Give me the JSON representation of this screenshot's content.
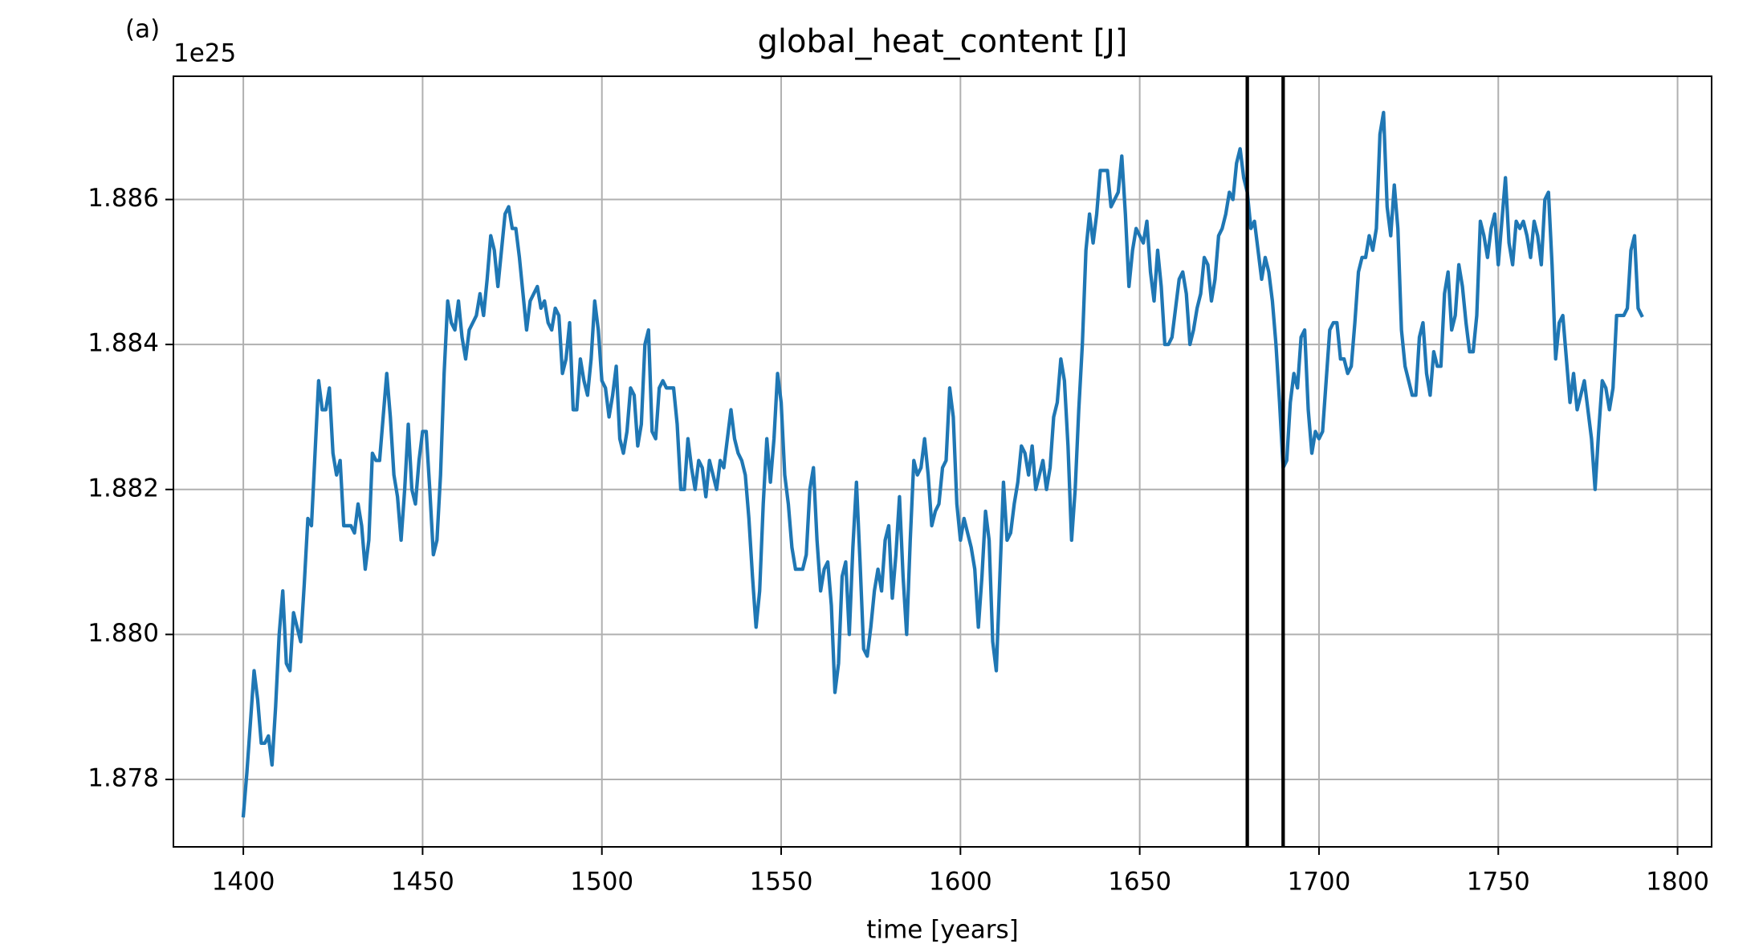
{
  "chart_data": {
    "type": "line",
    "panel_label": "(a)",
    "title": "global_heat_content [J]",
    "offset_label": "1e25",
    "xlabel": "time [years]",
    "color": "#1f77b4",
    "vlines": [
      1680,
      1690
    ],
    "vline_color": "#000000",
    "grid": true,
    "xlim": [
      1380.5,
      1809.5
    ],
    "xticks": [
      1400,
      1450,
      1500,
      1550,
      1600,
      1650,
      1700,
      1750,
      1800
    ],
    "ylim": [
      1.87707,
      1.8877
    ],
    "yticks": [
      1.878,
      {
        "value": 1.88,
        "label": "1.880"
      },
      1.882,
      1.884,
      1.886
    ],
    "x": [
      1400,
      1401,
      1402,
      1403,
      1404,
      1405,
      1406,
      1407,
      1408,
      1409,
      1410,
      1411,
      1412,
      1413,
      1414,
      1415,
      1416,
      1417,
      1418,
      1419,
      1420,
      1421,
      1422,
      1423,
      1424,
      1425,
      1426,
      1427,
      1428,
      1429,
      1430,
      1431,
      1432,
      1433,
      1434,
      1435,
      1436,
      1437,
      1438,
      1439,
      1440,
      1441,
      1442,
      1443,
      1444,
      1445,
      1446,
      1447,
      1448,
      1449,
      1450,
      1451,
      1452,
      1453,
      1454,
      1455,
      1456,
      1457,
      1458,
      1459,
      1460,
      1461,
      1462,
      1463,
      1464,
      1465,
      1466,
      1467,
      1468,
      1469,
      1470,
      1471,
      1472,
      1473,
      1474,
      1475,
      1476,
      1477,
      1478,
      1479,
      1480,
      1481,
      1482,
      1483,
      1484,
      1485,
      1486,
      1487,
      1488,
      1489,
      1490,
      1491,
      1492,
      1493,
      1494,
      1495,
      1496,
      1497,
      1498,
      1499,
      1500,
      1501,
      1502,
      1503,
      1504,
      1505,
      1506,
      1507,
      1508,
      1509,
      1510,
      1511,
      1512,
      1513,
      1514,
      1515,
      1516,
      1517,
      1518,
      1519,
      1520,
      1521,
      1522,
      1523,
      1524,
      1525,
      1526,
      1527,
      1528,
      1529,
      1530,
      1531,
      1532,
      1533,
      1534,
      1535,
      1536,
      1537,
      1538,
      1539,
      1540,
      1541,
      1542,
      1543,
      1544,
      1545,
      1546,
      1547,
      1548,
      1549,
      1550,
      1551,
      1552,
      1553,
      1554,
      1555,
      1556,
      1557,
      1558,
      1559,
      1560,
      1561,
      1562,
      1563,
      1564,
      1565,
      1566,
      1567,
      1568,
      1569,
      1570,
      1571,
      1572,
      1573,
      1574,
      1575,
      1576,
      1577,
      1578,
      1579,
      1580,
      1581,
      1582,
      1583,
      1584,
      1585,
      1586,
      1587,
      1588,
      1589,
      1590,
      1591,
      1592,
      1593,
      1594,
      1595,
      1596,
      1597,
      1598,
      1599,
      1600,
      1601,
      1602,
      1603,
      1604,
      1605,
      1606,
      1607,
      1608,
      1609,
      1610,
      1611,
      1612,
      1613,
      1614,
      1615,
      1616,
      1617,
      1618,
      1619,
      1620,
      1621,
      1622,
      1623,
      1624,
      1625,
      1626,
      1627,
      1628,
      1629,
      1630,
      1631,
      1632,
      1633,
      1634,
      1635,
      1636,
      1637,
      1638,
      1639,
      1640,
      1641,
      1642,
      1643,
      1644,
      1645,
      1646,
      1647,
      1648,
      1649,
      1650,
      1651,
      1652,
      1653,
      1654,
      1655,
      1656,
      1657,
      1658,
      1659,
      1660,
      1661,
      1662,
      1663,
      1664,
      1665,
      1666,
      1667,
      1668,
      1669,
      1670,
      1671,
      1672,
      1673,
      1674,
      1675,
      1676,
      1677,
      1678,
      1679,
      1680,
      1681,
      1682,
      1683,
      1684,
      1685,
      1686,
      1687,
      1688,
      1689,
      1690,
      1691,
      1692,
      1693,
      1694,
      1695,
      1696,
      1697,
      1698,
      1699,
      1700,
      1701,
      1702,
      1703,
      1704,
      1705,
      1706,
      1707,
      1708,
      1709,
      1710,
      1711,
      1712,
      1713,
      1714,
      1715,
      1716,
      1717,
      1718,
      1719,
      1720,
      1721,
      1722,
      1723,
      1724,
      1725,
      1726,
      1727,
      1728,
      1729,
      1730,
      1731,
      1732,
      1733,
      1734,
      1735,
      1736,
      1737,
      1738,
      1739,
      1740,
      1741,
      1742,
      1743,
      1744,
      1745,
      1746,
      1747,
      1748,
      1749,
      1750,
      1751,
      1752,
      1753,
      1754,
      1755,
      1756,
      1757,
      1758,
      1759,
      1760,
      1761,
      1762,
      1763,
      1764,
      1765,
      1766,
      1767,
      1768,
      1769,
      1770,
      1771,
      1772,
      1773,
      1774,
      1775,
      1776,
      1777,
      1778,
      1779,
      1780,
      1781,
      1782,
      1783,
      1784,
      1785,
      1786,
      1787,
      1788,
      1789,
      1790
    ],
    "values": [
      1.8775,
      1.8781,
      1.8788,
      1.8795,
      1.8791,
      1.8785,
      1.8785,
      1.8786,
      1.8782,
      1.879,
      1.88,
      1.8806,
      1.8796,
      1.8795,
      1.8803,
      1.8801,
      1.8799,
      1.8807,
      1.8816,
      1.8815,
      1.8825,
      1.8835,
      1.8831,
      1.8831,
      1.8834,
      1.8825,
      1.8822,
      1.8824,
      1.8815,
      1.8815,
      1.8815,
      1.8814,
      1.8818,
      1.8815,
      1.8809,
      1.8813,
      1.8825,
      1.8824,
      1.8824,
      1.883,
      1.8836,
      1.883,
      1.8822,
      1.8819,
      1.8813,
      1.882,
      1.8829,
      1.882,
      1.8818,
      1.8824,
      1.8828,
      1.8828,
      1.882,
      1.8811,
      1.8813,
      1.8822,
      1.8836,
      1.8846,
      1.8843,
      1.8842,
      1.8846,
      1.8841,
      1.8838,
      1.8842,
      1.8843,
      1.8844,
      1.8847,
      1.8844,
      1.8849,
      1.8855,
      1.8853,
      1.8848,
      1.8853,
      1.8858,
      1.8859,
      1.8856,
      1.8856,
      1.8852,
      1.8847,
      1.8842,
      1.8846,
      1.8847,
      1.8848,
      1.8845,
      1.8846,
      1.8843,
      1.8842,
      1.8845,
      1.8844,
      1.8836,
      1.8838,
      1.8843,
      1.8831,
      1.8831,
      1.8838,
      1.8835,
      1.8833,
      1.8838,
      1.8846,
      1.8842,
      1.8835,
      1.8834,
      1.883,
      1.8833,
      1.8837,
      1.8827,
      1.8825,
      1.8828,
      1.8834,
      1.8833,
      1.8826,
      1.8829,
      1.884,
      1.8842,
      1.8828,
      1.8827,
      1.8834,
      1.8835,
      1.8834,
      1.8834,
      1.8834,
      1.8829,
      1.882,
      1.882,
      1.8827,
      1.8823,
      1.882,
      1.8824,
      1.8823,
      1.8819,
      1.8824,
      1.8822,
      1.882,
      1.8824,
      1.8823,
      1.8827,
      1.8831,
      1.8827,
      1.8825,
      1.8824,
      1.8822,
      1.8816,
      1.8808,
      1.8801,
      1.8806,
      1.8818,
      1.8827,
      1.8821,
      1.8827,
      1.8836,
      1.8832,
      1.8822,
      1.8818,
      1.8812,
      1.8809,
      1.8809,
      1.8809,
      1.8811,
      1.882,
      1.8823,
      1.8813,
      1.8806,
      1.8809,
      1.881,
      1.8804,
      1.8792,
      1.8796,
      1.8808,
      1.881,
      1.88,
      1.8812,
      1.8821,
      1.881,
      1.8798,
      1.8797,
      1.8801,
      1.8806,
      1.8809,
      1.8806,
      1.8813,
      1.8815,
      1.8805,
      1.8811,
      1.8819,
      1.8808,
      1.88,
      1.8813,
      1.8824,
      1.8822,
      1.8823,
      1.8827,
      1.8822,
      1.8815,
      1.8817,
      1.8818,
      1.8823,
      1.8824,
      1.8834,
      1.883,
      1.8818,
      1.8813,
      1.8816,
      1.8814,
      1.8812,
      1.8809,
      1.8801,
      1.8808,
      1.8817,
      1.8813,
      1.8799,
      1.8795,
      1.8808,
      1.8821,
      1.8813,
      1.8814,
      1.8818,
      1.8821,
      1.8826,
      1.8825,
      1.8822,
      1.8826,
      1.882,
      1.8822,
      1.8824,
      1.882,
      1.8823,
      1.883,
      1.8832,
      1.8838,
      1.8835,
      1.8826,
      1.8813,
      1.882,
      1.8831,
      1.884,
      1.8853,
      1.8858,
      1.8854,
      1.8858,
      1.8864,
      1.8864,
      1.8864,
      1.8859,
      1.886,
      1.8861,
      1.8866,
      1.8858,
      1.8848,
      1.8853,
      1.8856,
      1.8855,
      1.8854,
      1.8857,
      1.885,
      1.8846,
      1.8853,
      1.8848,
      1.884,
      1.884,
      1.8841,
      1.8845,
      1.8849,
      1.885,
      1.8847,
      1.884,
      1.8842,
      1.8845,
      1.8847,
      1.8852,
      1.8851,
      1.8846,
      1.8849,
      1.8855,
      1.8856,
      1.8858,
      1.8861,
      1.886,
      1.8865,
      1.8867,
      1.8863,
      1.8861,
      1.8856,
      1.8857,
      1.8853,
      1.8849,
      1.8852,
      1.885,
      1.8846,
      1.884,
      1.8832,
      1.8823,
      1.8824,
      1.8832,
      1.8836,
      1.8834,
      1.8841,
      1.8842,
      1.8831,
      1.8825,
      1.8828,
      1.8827,
      1.8828,
      1.8835,
      1.8842,
      1.8843,
      1.8843,
      1.8838,
      1.8838,
      1.8836,
      1.8837,
      1.8843,
      1.885,
      1.8852,
      1.8852,
      1.8855,
      1.8853,
      1.8856,
      1.8869,
      1.8872,
      1.8859,
      1.8855,
      1.8862,
      1.8856,
      1.8842,
      1.8837,
      1.8835,
      1.8833,
      1.8833,
      1.8841,
      1.8843,
      1.8836,
      1.8833,
      1.8839,
      1.8837,
      1.8837,
      1.8847,
      1.885,
      1.8842,
      1.8844,
      1.8851,
      1.8848,
      1.8843,
      1.8839,
      1.8839,
      1.8844,
      1.8857,
      1.8855,
      1.8852,
      1.8856,
      1.8858,
      1.8851,
      1.8857,
      1.8863,
      1.8854,
      1.8851,
      1.8857,
      1.8856,
      1.8857,
      1.8855,
      1.8852,
      1.8857,
      1.8855,
      1.8851,
      1.886,
      1.8861,
      1.8851,
      1.8838,
      1.8843,
      1.8844,
      1.8838,
      1.8832,
      1.8836,
      1.8831,
      1.8833,
      1.8835,
      1.8831,
      1.8827,
      1.882,
      1.8828,
      1.8835,
      1.8834,
      1.8831,
      1.8834,
      1.8844,
      1.8844,
      1.8844,
      1.8845,
      1.8853,
      1.8855,
      1.8845,
      1.8844
    ]
  }
}
